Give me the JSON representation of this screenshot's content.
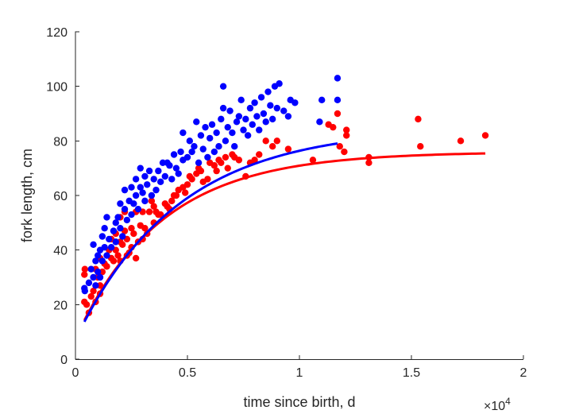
{
  "chart_data": {
    "type": "scatter",
    "title": "",
    "xlabel": "time since birth, d",
    "ylabel": "fork length, cm",
    "x_exponent_label": "×10",
    "x_exponent": "4",
    "xlim": [
      0,
      20000
    ],
    "ylim": [
      0,
      120
    ],
    "xticks": [
      0,
      5000,
      10000,
      15000,
      20000
    ],
    "xtick_labels": [
      "0",
      "0.5",
      "1",
      "1.5",
      "2"
    ],
    "yticks": [
      0,
      20,
      40,
      60,
      80,
      100,
      120
    ],
    "ytick_labels": [
      "0",
      "20",
      "40",
      "60",
      "80",
      "100",
      "120"
    ],
    "grid": false,
    "series": [
      {
        "color": "#ff0000",
        "points": [
          [
            400,
            21
          ],
          [
            400,
            31
          ],
          [
            420,
            33
          ],
          [
            500,
            20
          ],
          [
            600,
            17
          ],
          [
            700,
            23
          ],
          [
            800,
            25
          ],
          [
            900,
            21
          ],
          [
            900,
            33
          ],
          [
            1000,
            30
          ],
          [
            1100,
            27
          ],
          [
            1100,
            37
          ],
          [
            1100,
            24
          ],
          [
            1200,
            32
          ],
          [
            1300,
            35
          ],
          [
            1400,
            34
          ],
          [
            1500,
            40
          ],
          [
            1600,
            37
          ],
          [
            1600,
            44
          ],
          [
            1700,
            36
          ],
          [
            1800,
            40
          ],
          [
            1800,
            46
          ],
          [
            1900,
            38
          ],
          [
            2000,
            36
          ],
          [
            2000,
            43
          ],
          [
            2000,
            52
          ],
          [
            2100,
            42
          ],
          [
            2200,
            47
          ],
          [
            2200,
            54
          ],
          [
            2300,
            38
          ],
          [
            2300,
            44
          ],
          [
            2400,
            39
          ],
          [
            2500,
            41
          ],
          [
            2500,
            48
          ],
          [
            2600,
            46
          ],
          [
            2700,
            37
          ],
          [
            2700,
            54
          ],
          [
            2800,
            43
          ],
          [
            2900,
            49
          ],
          [
            3000,
            44
          ],
          [
            3000,
            54
          ],
          [
            3100,
            48
          ],
          [
            3200,
            46
          ],
          [
            3300,
            54
          ],
          [
            3400,
            58
          ],
          [
            3500,
            50
          ],
          [
            3500,
            56
          ],
          [
            3600,
            54
          ],
          [
            3700,
            53
          ],
          [
            3800,
            53
          ],
          [
            4000,
            57
          ],
          [
            4100,
            56
          ],
          [
            4200,
            55
          ],
          [
            4300,
            58
          ],
          [
            4400,
            60
          ],
          [
            4500,
            60
          ],
          [
            4600,
            62
          ],
          [
            4800,
            63
          ],
          [
            4900,
            61
          ],
          [
            5000,
            64
          ],
          [
            5100,
            67
          ],
          [
            5200,
            66
          ],
          [
            5400,
            68
          ],
          [
            5500,
            70
          ],
          [
            5600,
            69
          ],
          [
            5700,
            65
          ],
          [
            5900,
            66
          ],
          [
            6000,
            72
          ],
          [
            6200,
            71
          ],
          [
            6300,
            69
          ],
          [
            6400,
            73
          ],
          [
            6500,
            72
          ],
          [
            6700,
            74
          ],
          [
            6800,
            70
          ],
          [
            7000,
            75
          ],
          [
            7100,
            74
          ],
          [
            7300,
            73
          ],
          [
            7600,
            67
          ],
          [
            7800,
            72
          ],
          [
            8000,
            73
          ],
          [
            8200,
            75
          ],
          [
            8500,
            80
          ],
          [
            8800,
            78
          ],
          [
            9000,
            80
          ],
          [
            9500,
            77
          ],
          [
            10600,
            73
          ],
          [
            11300,
            86
          ],
          [
            11500,
            85
          ],
          [
            11700,
            90
          ],
          [
            11800,
            78
          ],
          [
            12000,
            76
          ],
          [
            12100,
            82
          ],
          [
            12100,
            84
          ],
          [
            13100,
            74
          ],
          [
            13100,
            72
          ],
          [
            15300,
            88
          ],
          [
            15400,
            78
          ],
          [
            17200,
            80
          ],
          [
            18300,
            82
          ]
        ]
      },
      {
        "color": "#0000ff",
        "points": [
          [
            400,
            26
          ],
          [
            420,
            25
          ],
          [
            600,
            28
          ],
          [
            700,
            33
          ],
          [
            800,
            30
          ],
          [
            800,
            42
          ],
          [
            900,
            36
          ],
          [
            900,
            27
          ],
          [
            1000,
            38
          ],
          [
            1000,
            32
          ],
          [
            1100,
            40
          ],
          [
            1100,
            30
          ],
          [
            1200,
            36
          ],
          [
            1200,
            45
          ],
          [
            1300,
            41
          ],
          [
            1300,
            48
          ],
          [
            1400,
            52
          ],
          [
            1400,
            38
          ],
          [
            1500,
            44
          ],
          [
            1600,
            41
          ],
          [
            1700,
            47
          ],
          [
            1800,
            50
          ],
          [
            1800,
            43
          ],
          [
            1900,
            52
          ],
          [
            2000,
            48
          ],
          [
            2000,
            57
          ],
          [
            2100,
            45
          ],
          [
            2200,
            55
          ],
          [
            2200,
            62
          ],
          [
            2300,
            51
          ],
          [
            2400,
            58
          ],
          [
            2500,
            53
          ],
          [
            2500,
            63
          ],
          [
            2600,
            57
          ],
          [
            2700,
            60
          ],
          [
            2700,
            66
          ],
          [
            2800,
            55
          ],
          [
            2900,
            70
          ],
          [
            2900,
            63
          ],
          [
            3000,
            61
          ],
          [
            3100,
            67
          ],
          [
            3100,
            58
          ],
          [
            3200,
            64
          ],
          [
            3300,
            69
          ],
          [
            3400,
            60
          ],
          [
            3500,
            66
          ],
          [
            3600,
            62
          ],
          [
            3700,
            69
          ],
          [
            3800,
            65
          ],
          [
            3900,
            72
          ],
          [
            4000,
            67
          ],
          [
            4100,
            72
          ],
          [
            4200,
            71
          ],
          [
            4300,
            66
          ],
          [
            4400,
            75
          ],
          [
            4500,
            70
          ],
          [
            4600,
            68
          ],
          [
            4700,
            76
          ],
          [
            4800,
            73
          ],
          [
            4800,
            83
          ],
          [
            5000,
            74
          ],
          [
            5100,
            80
          ],
          [
            5200,
            76
          ],
          [
            5300,
            78
          ],
          [
            5400,
            87
          ],
          [
            5500,
            72
          ],
          [
            5600,
            82
          ],
          [
            5700,
            77
          ],
          [
            5800,
            85
          ],
          [
            5900,
            74
          ],
          [
            6000,
            81
          ],
          [
            6100,
            86
          ],
          [
            6200,
            76
          ],
          [
            6300,
            83
          ],
          [
            6400,
            78
          ],
          [
            6500,
            88
          ],
          [
            6600,
            92
          ],
          [
            6600,
            100
          ],
          [
            6700,
            80
          ],
          [
            6800,
            85
          ],
          [
            6900,
            91
          ],
          [
            7000,
            83
          ],
          [
            7100,
            78
          ],
          [
            7200,
            87
          ],
          [
            7300,
            89
          ],
          [
            7400,
            95
          ],
          [
            7500,
            84
          ],
          [
            7600,
            88
          ],
          [
            7700,
            82
          ],
          [
            7800,
            92
          ],
          [
            7900,
            86
          ],
          [
            8000,
            94
          ],
          [
            8100,
            89
          ],
          [
            8200,
            84
          ],
          [
            8300,
            96
          ],
          [
            8400,
            90
          ],
          [
            8500,
            87
          ],
          [
            8600,
            98
          ],
          [
            8700,
            93
          ],
          [
            8800,
            88
          ],
          [
            8900,
            100
          ],
          [
            9000,
            92
          ],
          [
            9100,
            101
          ],
          [
            9300,
            91
          ],
          [
            9500,
            89
          ],
          [
            9600,
            95
          ],
          [
            9800,
            94
          ],
          [
            10900,
            87
          ],
          [
            11000,
            95
          ],
          [
            11700,
            103
          ],
          [
            11700,
            95
          ]
        ]
      }
    ],
    "fit_curves": [
      {
        "color": "#ff0000",
        "model": "von Bertalanffy",
        "Linf": 76,
        "K": 0.00026,
        "t0": -400,
        "x_range": [
          400,
          18300
        ]
      },
      {
        "color": "#0000ff",
        "model": "von Bertalanffy",
        "Linf": 85,
        "K": 0.00022,
        "t0": -400,
        "x_range": [
          400,
          11700
        ]
      }
    ]
  }
}
